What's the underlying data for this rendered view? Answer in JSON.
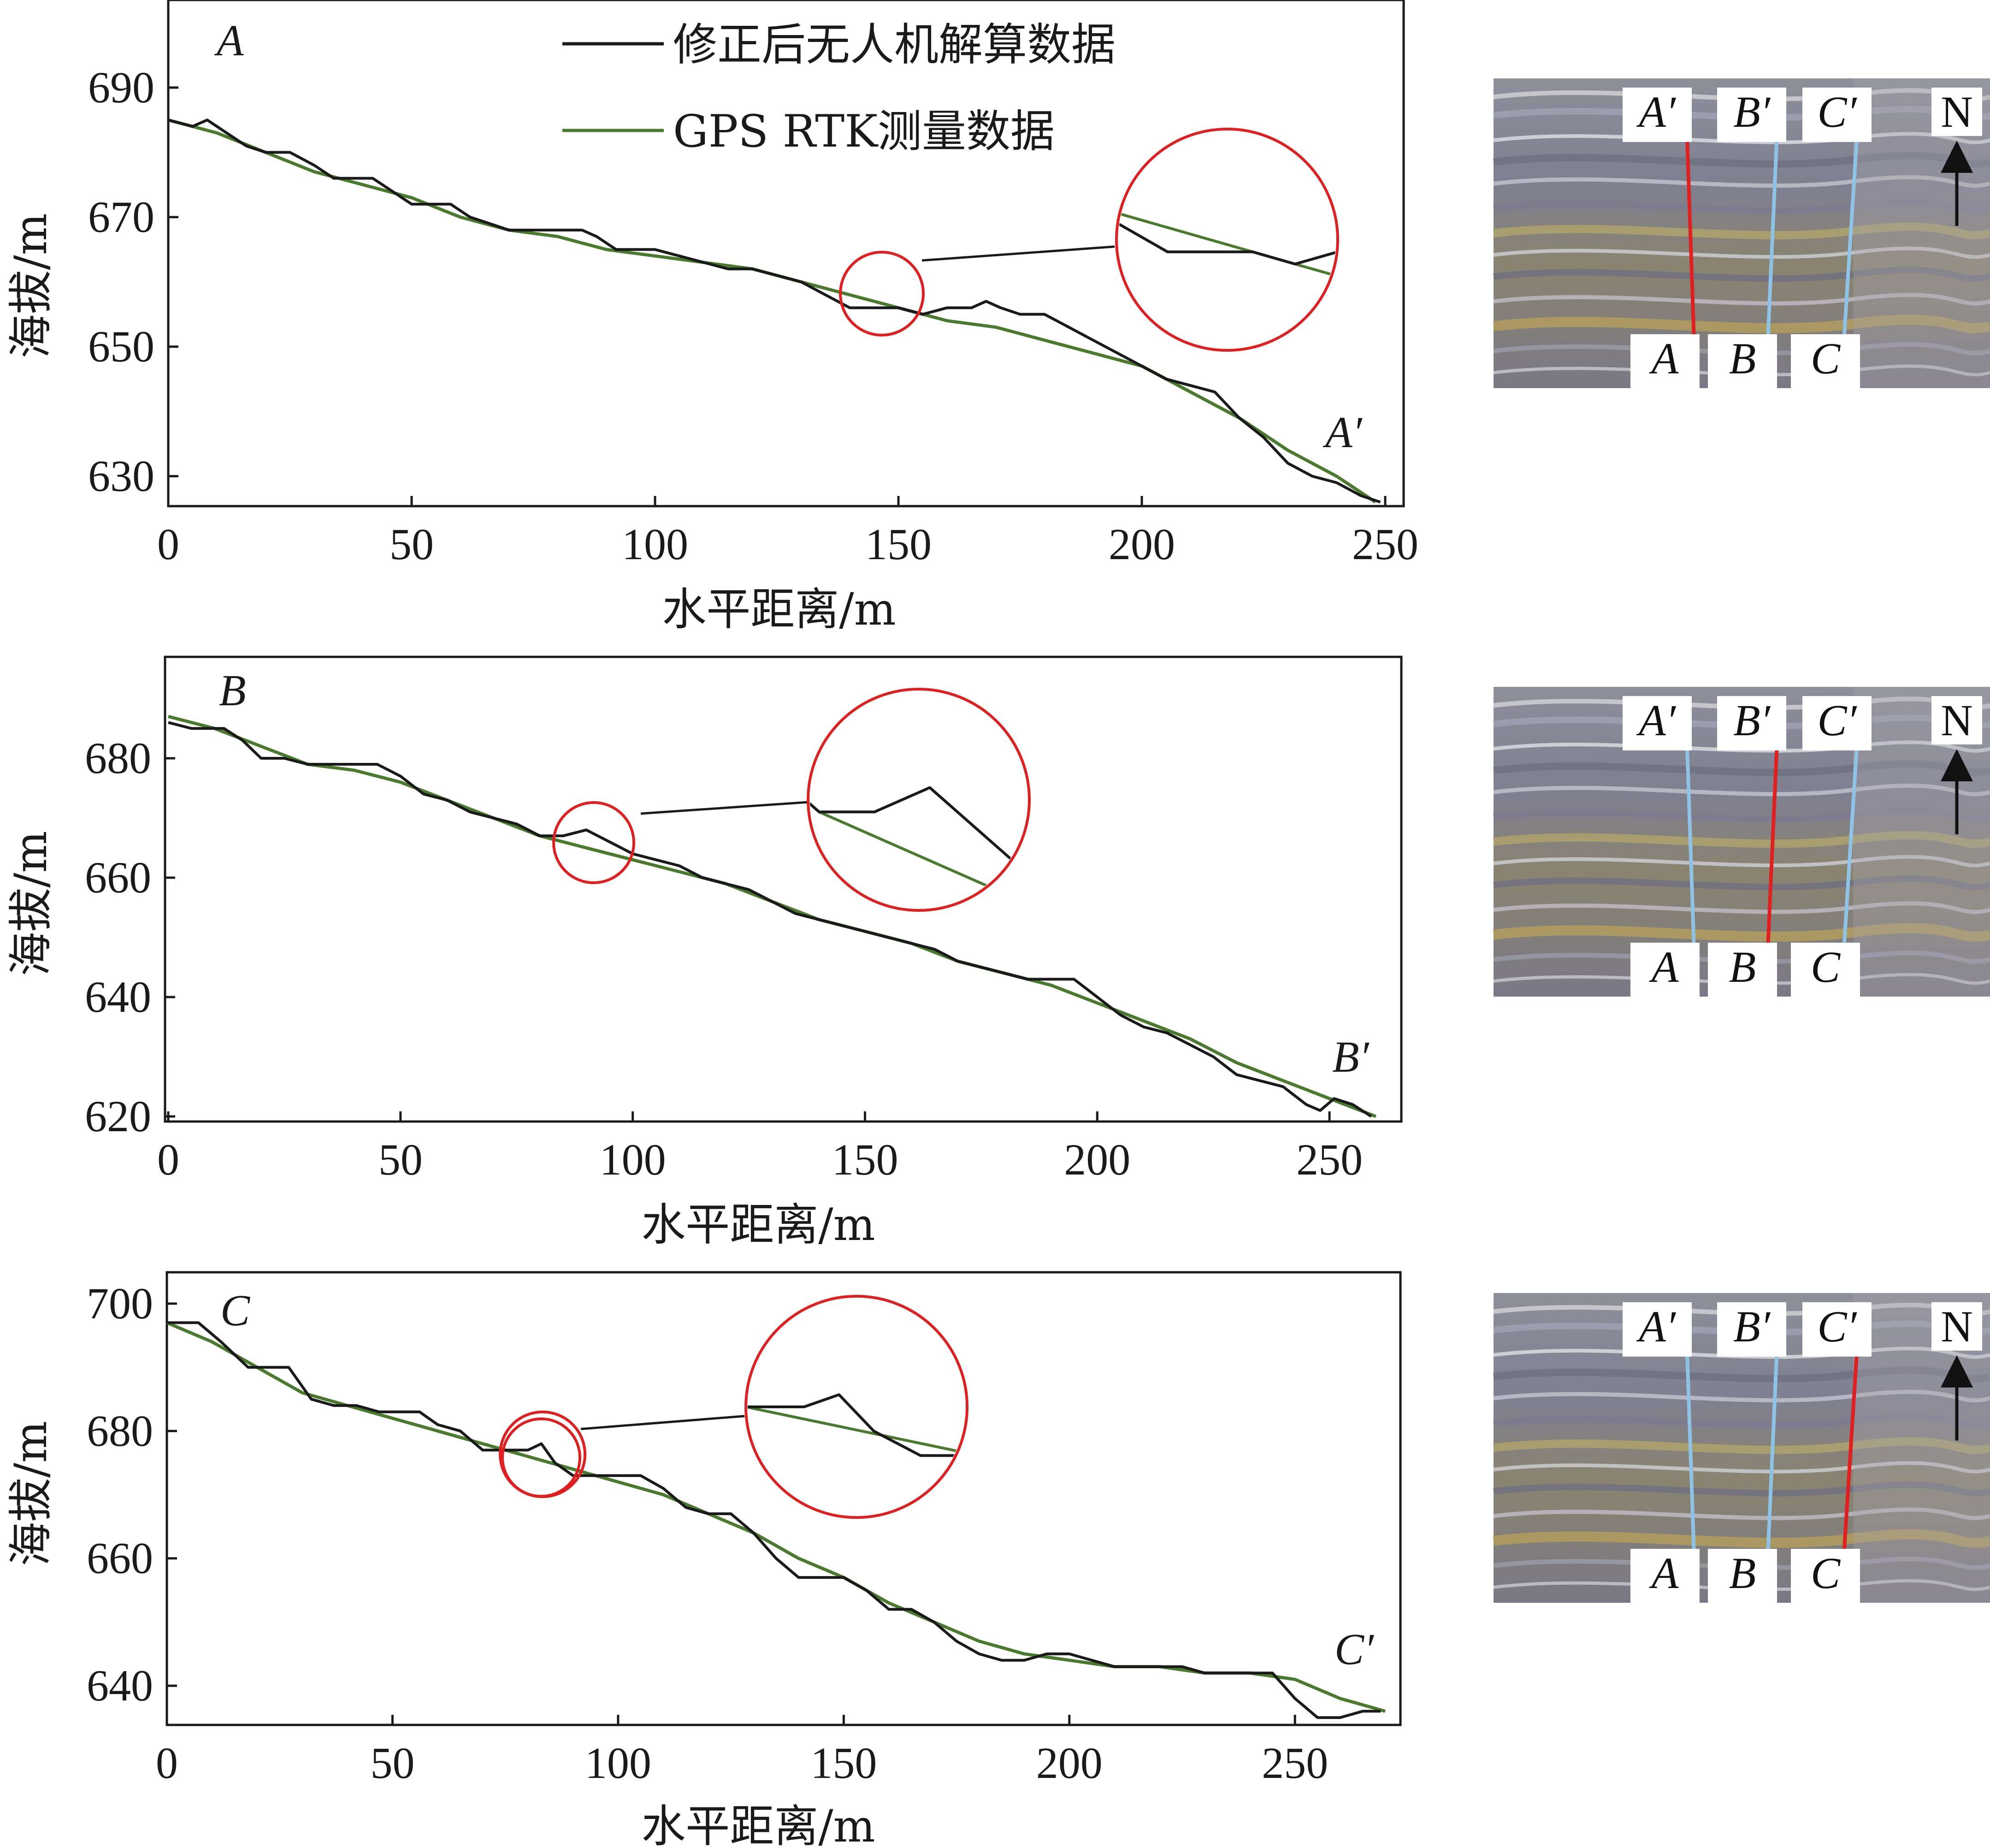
{
  "legend": {
    "uav": "修正后无人机解算数据",
    "gps": "GPS RTK测量数据"
  },
  "colors": {
    "uav": "#1a1a1a",
    "gps": "#4a7a2e",
    "highlight": "#e02020",
    "profile_other": "#8ec3e6",
    "profile_active": "#e02020"
  },
  "map": {
    "labels_top": [
      "A′",
      "B′",
      "C′"
    ],
    "labels_bottom": [
      "A",
      "B",
      "C"
    ],
    "north": "N"
  },
  "chart_data": [
    {
      "type": "line",
      "start_label": "A",
      "end_label": "A′",
      "xlabel": "水平距离/m",
      "ylabel": "海拔/m",
      "xlim": [
        0,
        250
      ],
      "ylim": [
        625,
        700
      ],
      "xticks": [
        0,
        50,
        100,
        150,
        200,
        250
      ],
      "yticks": [
        630,
        650,
        670,
        690
      ],
      "legend": "top-center",
      "active_profile": "A",
      "series": [
        {
          "name": "修正后无人机解算数据",
          "x": [
            0,
            5,
            8,
            12,
            16,
            20,
            25,
            30,
            34,
            38,
            42,
            46,
            50,
            55,
            58,
            62,
            66,
            70,
            75,
            80,
            85,
            88,
            92,
            96,
            100,
            105,
            110,
            115,
            120,
            125,
            130,
            135,
            140,
            145,
            150,
            155,
            160,
            165,
            168,
            171,
            175,
            180,
            185,
            190,
            195,
            200,
            205,
            210,
            215,
            220,
            225,
            230,
            235,
            240,
            245,
            249
          ],
          "y": [
            685,
            684,
            685,
            683,
            681,
            680,
            680,
            678,
            676,
            676,
            676,
            674,
            672,
            672,
            672,
            670,
            669,
            668,
            668,
            668,
            668,
            667,
            665,
            665,
            665,
            664,
            663,
            662,
            662,
            661,
            660,
            658,
            656,
            656,
            656,
            655,
            656,
            656,
            657,
            656,
            655,
            655,
            653,
            651,
            649,
            647,
            645,
            644,
            643,
            639,
            636,
            632,
            630,
            629,
            627,
            626
          ]
        },
        {
          "name": "GPS RTK测量数据",
          "x": [
            0,
            10,
            20,
            30,
            40,
            50,
            60,
            70,
            80,
            90,
            100,
            110,
            120,
            130,
            140,
            150,
            160,
            170,
            180,
            190,
            200,
            210,
            220,
            230,
            240,
            248
          ],
          "y": [
            685,
            683,
            680,
            677,
            675,
            673,
            670,
            668,
            667,
            665,
            664,
            663,
            662,
            660,
            658,
            656,
            654,
            653,
            651,
            649,
            647,
            643,
            639,
            634,
            630,
            626
          ]
        }
      ],
      "inset_x": [
        134,
        160
      ],
      "inset_y": [
        652,
        662
      ]
    },
    {
      "type": "line",
      "start_label": "B",
      "end_label": "B′",
      "xlabel": "水平距离/m",
      "ylabel": "海拔/m",
      "xlim": [
        0,
        262
      ],
      "ylim": [
        619,
        693
      ],
      "xticks": [
        0,
        50,
        100,
        150,
        200,
        250
      ],
      "yticks": [
        620,
        640,
        660,
        680
      ],
      "legend": "none",
      "active_profile": "B",
      "series": [
        {
          "name": "修正后无人机解算数据",
          "x": [
            0,
            5,
            12,
            16,
            20,
            25,
            30,
            35,
            40,
            45,
            50,
            55,
            60,
            65,
            70,
            75,
            80,
            85,
            90,
            95,
            100,
            105,
            110,
            115,
            120,
            125,
            130,
            135,
            140,
            145,
            150,
            155,
            160,
            165,
            170,
            175,
            180,
            185,
            190,
            195,
            200,
            205,
            210,
            215,
            220,
            225,
            230,
            235,
            240,
            245,
            248,
            251,
            255,
            259
          ],
          "y": [
            686,
            685,
            685,
            683,
            680,
            680,
            679,
            679,
            679,
            679,
            677,
            674,
            673,
            671,
            670,
            669,
            667,
            667,
            668,
            666,
            664,
            663,
            662,
            660,
            659,
            658,
            656,
            654,
            653,
            652,
            651,
            650,
            649,
            648,
            646,
            645,
            644,
            643,
            643,
            643,
            640,
            637,
            635,
            634,
            632,
            630,
            627,
            626,
            625,
            622,
            621,
            623,
            622,
            620
          ]
        },
        {
          "name": "GPS RTK测量数据",
          "x": [
            0,
            10,
            20,
            30,
            40,
            50,
            60,
            70,
            80,
            90,
            100,
            110,
            120,
            130,
            140,
            150,
            160,
            170,
            180,
            190,
            200,
            210,
            220,
            230,
            240,
            250,
            260
          ],
          "y": [
            687,
            685,
            682,
            679,
            678,
            676,
            673,
            670,
            667,
            665,
            663,
            661,
            659,
            656,
            653,
            651,
            649,
            646,
            644,
            642,
            639,
            636,
            633,
            629,
            626,
            623,
            620
          ]
        }
      ],
      "inset_x": [
        79,
        99
      ],
      "inset_y": [
        665,
        670
      ]
    },
    {
      "type": "line",
      "start_label": "C",
      "end_label": "C′",
      "xlabel": "水平距离/m",
      "ylabel": "海拔/m",
      "xlim": [
        0,
        270
      ],
      "ylim": [
        635,
        705
      ],
      "xticks": [
        0,
        50,
        100,
        150,
        200,
        250
      ],
      "yticks": [
        640,
        660,
        680,
        700
      ],
      "legend": "none",
      "active_profile": "C",
      "series": [
        {
          "name": "修正后无人机解算数据",
          "x": [
            0,
            7,
            12,
            18,
            22,
            27,
            32,
            37,
            42,
            47,
            52,
            56,
            60,
            65,
            70,
            75,
            80,
            83,
            86,
            90,
            95,
            100,
            105,
            110,
            115,
            120,
            125,
            130,
            135,
            140,
            145,
            150,
            155,
            160,
            165,
            170,
            175,
            180,
            185,
            190,
            195,
            200,
            205,
            210,
            215,
            220,
            225,
            230,
            235,
            240,
            245,
            250,
            255,
            260,
            265,
            269
          ],
          "y": [
            697,
            697,
            694,
            690,
            690,
            690,
            685,
            684,
            684,
            683,
            683,
            683,
            681,
            680,
            677,
            677,
            677,
            678,
            675,
            673,
            673,
            673,
            673,
            671,
            668,
            667,
            667,
            664,
            660,
            657,
            657,
            657,
            655,
            652,
            652,
            650,
            647,
            645,
            644,
            644,
            645,
            645,
            644,
            643,
            643,
            643,
            643,
            642,
            642,
            642,
            642,
            638,
            635,
            635,
            636,
            636
          ]
        },
        {
          "name": "GPS RTK测量数据",
          "x": [
            0,
            10,
            20,
            30,
            40,
            50,
            60,
            70,
            80,
            90,
            100,
            110,
            120,
            130,
            140,
            150,
            160,
            170,
            180,
            190,
            200,
            210,
            220,
            230,
            240,
            250,
            260,
            270
          ],
          "y": [
            697,
            694,
            690,
            686,
            684,
            682,
            680,
            678,
            676,
            674,
            672,
            670,
            667,
            664,
            660,
            657,
            653,
            650,
            647,
            645,
            644,
            643,
            643,
            642,
            642,
            641,
            638,
            636
          ]
        }
      ],
      "inset_x": [
        75,
        94
      ],
      "inset_y": [
        672,
        682
      ]
    }
  ]
}
